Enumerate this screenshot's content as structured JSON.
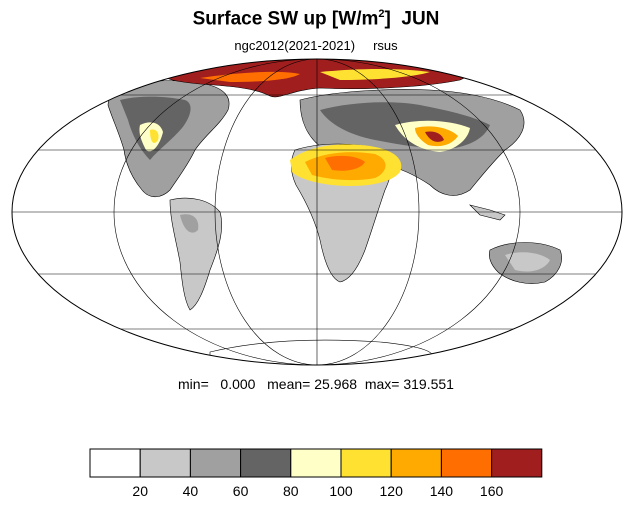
{
  "title": {
    "main": "Surface SW up [W/m",
    "sup": "2",
    "close": "]",
    "month": "JUN"
  },
  "subtitle": {
    "run": "ngc2012(2021-2021)",
    "variable": "rsus"
  },
  "stats": {
    "min_label": "min=",
    "min_value": "0.000",
    "mean_label": "mean=",
    "mean_value": "25.968",
    "max_label": "max=",
    "max_value": "319.551"
  },
  "colorbar": {
    "colors": [
      "#ffffff",
      "#c8c8c8",
      "#a0a0a0",
      "#646464",
      "#ffffc8",
      "#ffe132",
      "#ffaa00",
      "#ff6e00",
      "#a01e1e"
    ],
    "labels": [
      "20",
      "40",
      "60",
      "80",
      "100",
      "120",
      "140",
      "160"
    ]
  },
  "colors": {
    "ocean": "#ffffff",
    "gridline": "#000000",
    "coastline": "#000000"
  }
}
